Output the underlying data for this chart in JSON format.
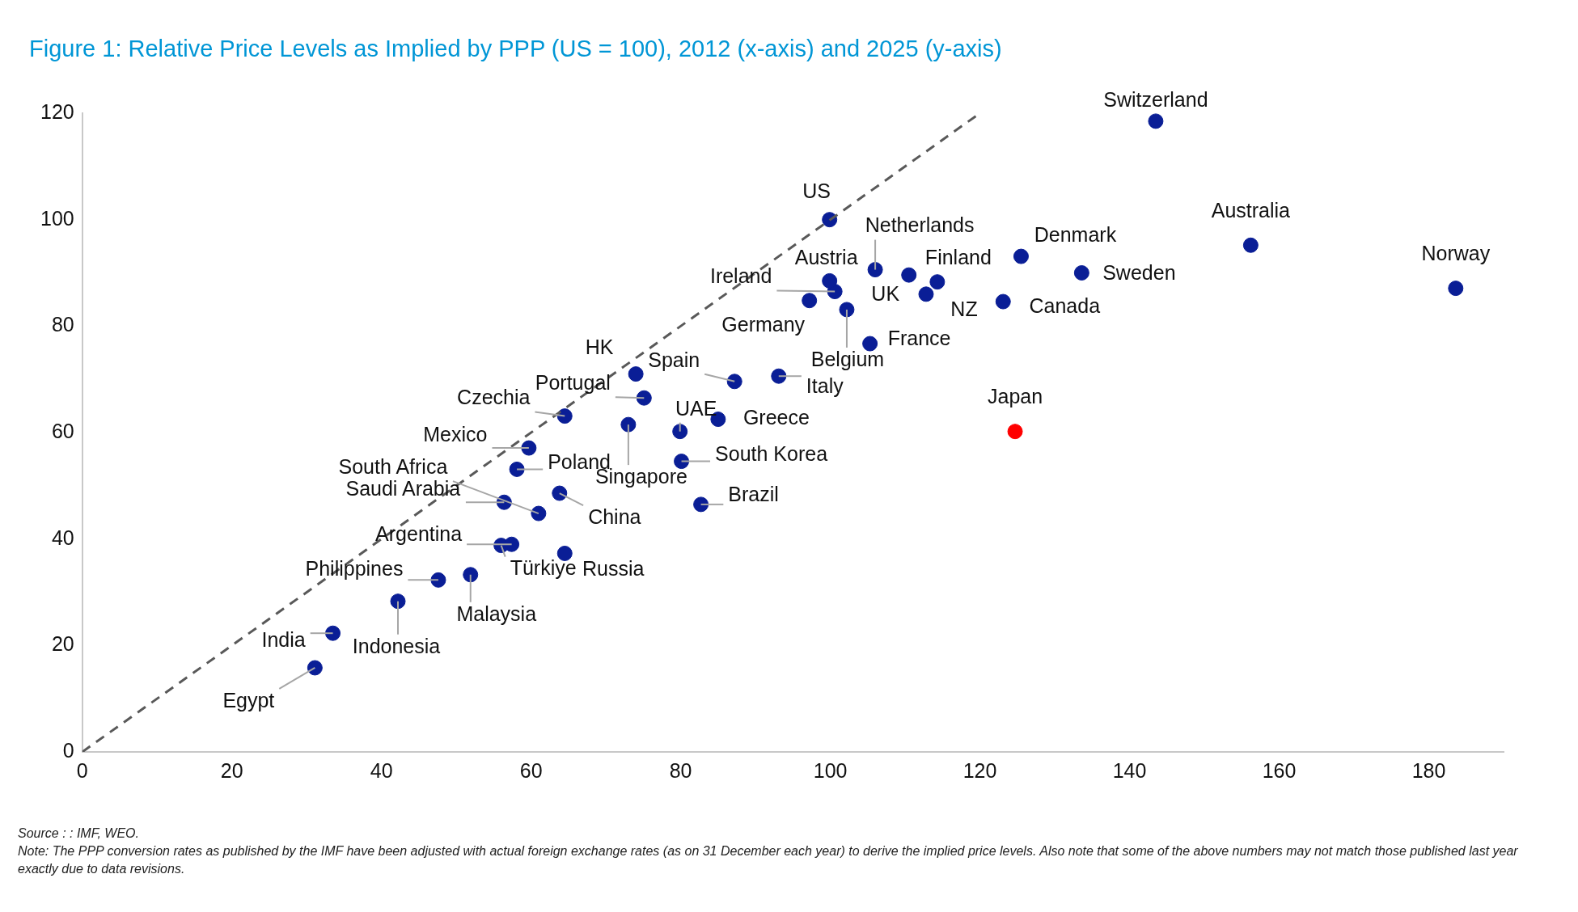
{
  "chart_data": {
    "type": "scatter",
    "title": "Figure 1: Relative Price Levels as Implied by PPP (US = 100), 2012 (x-axis) and 2025 (y-axis)",
    "annotations": [
      "Source : : IMF, WEO.",
      "Note: The PPP conversion rates as published by the IMF have been adjusted with actual foreign exchange rates (as on 31 December each year) to derive the implied price levels. Also note that some of the above numbers may not match those published last year exactly due to data revisions."
    ],
    "xlim": [
      0,
      190
    ],
    "xticks": [
      0,
      20,
      40,
      60,
      80,
      100,
      120,
      140,
      160,
      180
    ],
    "ylim": [
      0,
      120
    ],
    "yticks": [
      0,
      20,
      40,
      60,
      80,
      100,
      120
    ],
    "grid": false,
    "legend": false,
    "marker": "circle",
    "series": [
      {
        "type": "line",
        "color": "#595959",
        "line_style": "dashed",
        "marker": "none",
        "x": [
          0,
          120
        ],
        "values": [
          0,
          120
        ]
      },
      {
        "name": "Switzerland",
        "color": "#0a1e96",
        "x": [
          143.5
        ],
        "values": [
          118.5
        ]
      },
      {
        "name": "US",
        "color": "#0a1e96",
        "x": [
          99.9
        ],
        "values": [
          100
        ]
      },
      {
        "name": "Netherlands",
        "color": "#0a1e96",
        "x": [
          106.0
        ],
        "values": [
          90.6
        ]
      },
      {
        "name": "Austria",
        "color": "#0a1e96",
        "x": [
          99.9
        ],
        "values": [
          88.5
        ]
      },
      {
        "name": "Ireland",
        "color": "#0a1e96",
        "x": [
          100.6
        ],
        "values": [
          86.5
        ]
      },
      {
        "name": "Germany",
        "color": "#0a1e96",
        "x": [
          97.2
        ],
        "values": [
          84.8
        ]
      },
      {
        "name": "Belgium",
        "color": "#0a1e96",
        "x": [
          102.2
        ],
        "values": [
          83.1
        ]
      },
      {
        "name": "UK",
        "color": "#0a1e96",
        "x": [
          110.5
        ],
        "values": [
          89.6
        ]
      },
      {
        "name": "NZ",
        "color": "#0a1e96",
        "x": [
          112.8
        ],
        "values": [
          86.0
        ]
      },
      {
        "name": "Finland",
        "color": "#0a1e96",
        "x": [
          114.3
        ],
        "values": [
          88.3
        ]
      },
      {
        "name": "France",
        "color": "#0a1e96",
        "x": [
          105.3
        ],
        "values": [
          76.7
        ]
      },
      {
        "name": "Denmark",
        "color": "#0a1e96",
        "x": [
          125.5
        ],
        "values": [
          93.1
        ]
      },
      {
        "name": "Canada",
        "color": "#0a1e96",
        "x": [
          123.1
        ],
        "values": [
          84.6
        ]
      },
      {
        "name": "Sweden",
        "color": "#0a1e96",
        "x": [
          133.6
        ],
        "values": [
          90.0
        ]
      },
      {
        "name": "Australia",
        "color": "#0a1e96",
        "x": [
          156.2
        ],
        "values": [
          95.2
        ]
      },
      {
        "name": "Norway",
        "color": "#0a1e96",
        "x": [
          183.6
        ],
        "values": [
          87.1
        ]
      },
      {
        "name": "Japan",
        "color": "#ff0000",
        "x": [
          124.7
        ],
        "values": [
          60.2
        ]
      },
      {
        "name": "HK",
        "color": "#0a1e96",
        "x": [
          74.0
        ],
        "values": [
          71.0
        ]
      },
      {
        "name": "Spain",
        "color": "#0a1e96",
        "x": [
          87.2
        ],
        "values": [
          69.6
        ]
      },
      {
        "name": "Italy",
        "color": "#0a1e96",
        "x": [
          93.1
        ],
        "values": [
          70.6
        ]
      },
      {
        "name": "Portugal",
        "color": "#0a1e96",
        "x": [
          75.1
        ],
        "values": [
          66.5
        ]
      },
      {
        "name": "UAE",
        "color": "#0a1e96",
        "x": [
          79.9
        ],
        "values": [
          60.2
        ]
      },
      {
        "name": "Singapore",
        "color": "#0a1e96",
        "x": [
          73.0
        ],
        "values": [
          61.5
        ]
      },
      {
        "name": "Greece",
        "color": "#0a1e96",
        "x": [
          85.0
        ],
        "values": [
          62.5
        ]
      },
      {
        "name": "South Korea",
        "color": "#0a1e96",
        "x": [
          80.1
        ],
        "values": [
          54.6
        ]
      },
      {
        "name": "Brazil",
        "color": "#0a1e96",
        "x": [
          82.7
        ],
        "values": [
          46.5
        ]
      },
      {
        "name": "Czechia",
        "color": "#0a1e96",
        "x": [
          64.5
        ],
        "values": [
          63.1
        ]
      },
      {
        "name": "Mexico",
        "color": "#0a1e96",
        "x": [
          59.7
        ],
        "values": [
          57.1
        ]
      },
      {
        "name": "Poland",
        "color": "#0a1e96",
        "x": [
          58.1
        ],
        "values": [
          53.1
        ]
      },
      {
        "name": "South Africa",
        "color": "#0a1e96",
        "x": [
          61.0
        ],
        "values": [
          44.8
        ]
      },
      {
        "name": "Saudi Arabia",
        "color": "#0a1e96",
        "x": [
          56.4
        ],
        "values": [
          46.9
        ]
      },
      {
        "name": "China",
        "color": "#0a1e96",
        "x": [
          63.8
        ],
        "values": [
          48.6
        ]
      },
      {
        "name": "Argentina",
        "color": "#0a1e96",
        "x": [
          57.4
        ],
        "values": [
          39.0
        ]
      },
      {
        "name": "Türkiye",
        "color": "#0a1e96",
        "x": [
          56.0
        ],
        "values": [
          38.8
        ]
      },
      {
        "name": "Russia",
        "color": "#0a1e96",
        "x": [
          64.5
        ],
        "values": [
          37.3
        ]
      },
      {
        "name": "Philippines",
        "color": "#0a1e96",
        "x": [
          47.6
        ],
        "values": [
          32.3
        ]
      },
      {
        "name": "Malaysia",
        "color": "#0a1e96",
        "x": [
          51.9
        ],
        "values": [
          33.3
        ]
      },
      {
        "name": "Indonesia",
        "color": "#0a1e96",
        "x": [
          42.2
        ],
        "values": [
          28.3
        ]
      },
      {
        "name": "India",
        "color": "#0a1e96",
        "x": [
          33.5
        ],
        "values": [
          22.3
        ]
      },
      {
        "name": "Egypt",
        "color": "#0a1e96",
        "x": [
          31.1
        ],
        "values": [
          15.8
        ]
      }
    ]
  }
}
